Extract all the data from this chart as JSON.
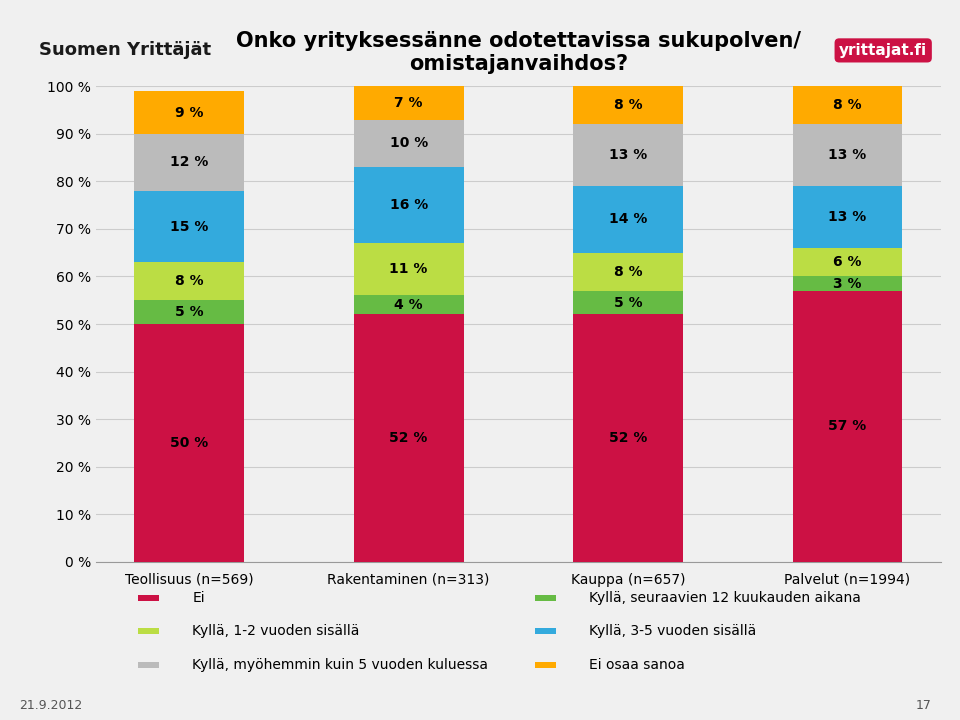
{
  "title_line1": "Onko yrityksessänne odotettavissa sukupolven/",
  "title_line2": "omistajanvaihdos?",
  "categories": [
    "Teollisuus (n=569)",
    "Rakentaminen (n=313)",
    "Kauppa (n=657)",
    "Palvelut (n=1994)"
  ],
  "series": [
    {
      "label": "Ei",
      "color": "#CC1144",
      "values": [
        50,
        52,
        52,
        57
      ]
    },
    {
      "label": "Kyllä, seuraavien 12 kuukauden aikana",
      "color": "#66BB44",
      "values": [
        5,
        4,
        5,
        3
      ]
    },
    {
      "label": "Kyllä, 1-2 vuoden sisällä",
      "color": "#BBDD44",
      "values": [
        8,
        11,
        8,
        6
      ]
    },
    {
      "label": "Kyllä, 3-5 vuoden sisällä",
      "color": "#33AADD",
      "values": [
        15,
        16,
        14,
        13
      ]
    },
    {
      "label": "Kyllä, myöhemmin kuin 5 vuoden kuluessa",
      "color": "#BBBBBB",
      "values": [
        12,
        10,
        13,
        13
      ]
    },
    {
      "label": "Ei osaa sanoa",
      "color": "#FFAA00",
      "values": [
        9,
        7,
        8,
        8
      ]
    }
  ],
  "legend_order": [
    {
      "label": "Ei",
      "color": "#CC1144"
    },
    {
      "label": "Kyllä, seuraavien 12 kuukauden aikana",
      "color": "#66BB44"
    },
    {
      "label": "Kyllä, 1-2 vuoden sisällä",
      "color": "#BBDD44"
    },
    {
      "label": "Kyllä, 3-5 vuoden sisällä",
      "color": "#33AADD"
    },
    {
      "label": "Kyllä, myöhemmin kuin 5 vuoden kuluessa",
      "color": "#BBBBBB"
    },
    {
      "label": "Ei osaa sanoa",
      "color": "#FFAA00"
    }
  ],
  "ylim": [
    0,
    100
  ],
  "yticks": [
    0,
    10,
    20,
    30,
    40,
    50,
    60,
    70,
    80,
    90,
    100
  ],
  "ytick_labels": [
    "0 %",
    "10 %",
    "20 %",
    "30 %",
    "40 %",
    "50 %",
    "60 %",
    "70 %",
    "80 %",
    "90 %",
    "100 %"
  ],
  "bar_width": 0.5,
  "background_color": "#F0F0F0",
  "chart_bg_color": "#F0F0F0",
  "grid_color": "#CCCCCC",
  "title_fontsize": 15,
  "tick_fontsize": 10,
  "label_fontsize": 10,
  "legend_fontsize": 10,
  "date_text": "21.9.2012",
  "page_num": "17",
  "header_bg": "#FFFFFF"
}
